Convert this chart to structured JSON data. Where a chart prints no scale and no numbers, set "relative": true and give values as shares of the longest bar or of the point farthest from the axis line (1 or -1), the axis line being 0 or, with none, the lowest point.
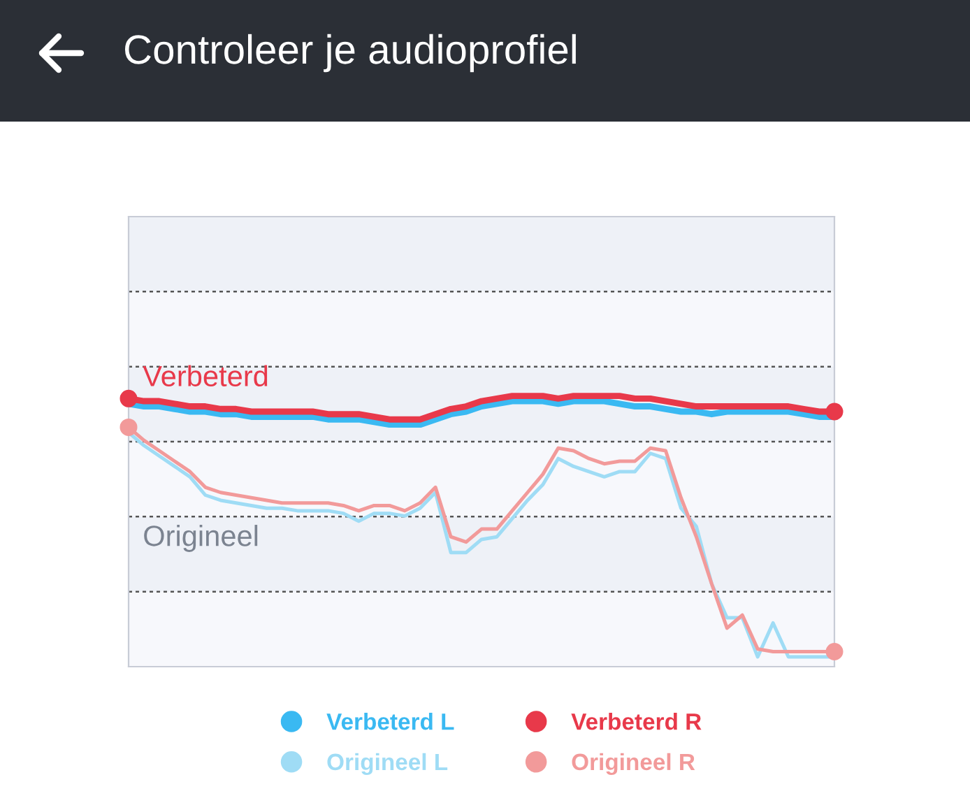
{
  "chart_data": {
    "type": "line",
    "title": "Controleer je audioprofiel",
    "relative": true,
    "grid": "y",
    "legend": "bottom",
    "line_style": "solid",
    "categories": [
      null,
      null,
      null,
      null,
      null,
      null,
      null,
      null,
      null,
      null,
      null,
      null,
      null,
      null,
      null,
      null,
      null,
      null,
      null,
      null,
      null,
      null,
      null,
      null,
      null,
      null,
      null,
      null,
      null,
      null,
      null,
      null,
      null,
      null,
      null,
      null,
      null,
      null,
      null,
      null,
      null,
      null,
      null,
      null,
      null,
      null,
      null
    ],
    "annotations": [
      "Verbeterd",
      "Origineel"
    ],
    "series": [
      {
        "name": "Verbeterd L",
        "color": "#3ab9f2",
        "values": [
          0.97,
          0.96,
          0.96,
          0.95,
          0.94,
          0.94,
          0.93,
          0.93,
          0.92,
          0.92,
          0.92,
          0.92,
          0.92,
          0.91,
          0.91,
          0.91,
          0.9,
          0.89,
          0.89,
          0.89,
          0.91,
          0.93,
          0.94,
          0.96,
          0.97,
          0.98,
          0.98,
          0.98,
          0.97,
          0.98,
          0.98,
          0.98,
          0.97,
          0.96,
          0.96,
          0.95,
          0.94,
          0.94,
          0.93,
          0.94,
          0.94,
          0.94,
          0.94,
          0.94,
          0.93,
          0.92,
          0.92
        ]
      },
      {
        "name": "Verbeterd R",
        "color": "#e8394a",
        "values": [
          0.99,
          0.98,
          0.98,
          0.97,
          0.96,
          0.96,
          0.95,
          0.95,
          0.94,
          0.94,
          0.94,
          0.94,
          0.94,
          0.93,
          0.93,
          0.93,
          0.92,
          0.91,
          0.91,
          0.91,
          0.93,
          0.95,
          0.96,
          0.98,
          0.99,
          1.0,
          1.0,
          1.0,
          0.99,
          1.0,
          1.0,
          1.0,
          1.0,
          0.99,
          0.99,
          0.98,
          0.97,
          0.96,
          0.96,
          0.96,
          0.96,
          0.96,
          0.96,
          0.96,
          0.95,
          0.94,
          0.94
        ]
      },
      {
        "name": "Origineel L",
        "color": "#9fdcf5",
        "values": [
          0.86,
          0.81,
          0.77,
          0.73,
          0.69,
          0.62,
          0.6,
          0.59,
          0.58,
          0.57,
          0.57,
          0.56,
          0.56,
          0.56,
          0.55,
          0.52,
          0.55,
          0.55,
          0.54,
          0.57,
          0.63,
          0.4,
          0.4,
          0.45,
          0.46,
          0.53,
          0.6,
          0.66,
          0.76,
          0.73,
          0.71,
          0.69,
          0.71,
          0.71,
          0.78,
          0.76,
          0.57,
          0.5,
          0.28,
          0.15,
          0.15,
          0.0,
          0.13,
          0.0,
          0.0,
          0.0,
          0.0
        ]
      },
      {
        "name": "Origineel R",
        "color": "#f29a9a",
        "values": [
          0.88,
          0.83,
          0.79,
          0.75,
          0.71,
          0.65,
          0.63,
          0.62,
          0.61,
          0.6,
          0.59,
          0.59,
          0.59,
          0.59,
          0.58,
          0.56,
          0.58,
          0.58,
          0.56,
          0.59,
          0.65,
          0.46,
          0.44,
          0.49,
          0.49,
          0.56,
          0.63,
          0.7,
          0.8,
          0.79,
          0.76,
          0.74,
          0.75,
          0.75,
          0.8,
          0.79,
          0.61,
          0.46,
          0.28,
          0.11,
          0.16,
          0.03,
          0.02,
          0.02,
          0.02,
          0.02,
          0.02
        ]
      }
    ]
  }
}
